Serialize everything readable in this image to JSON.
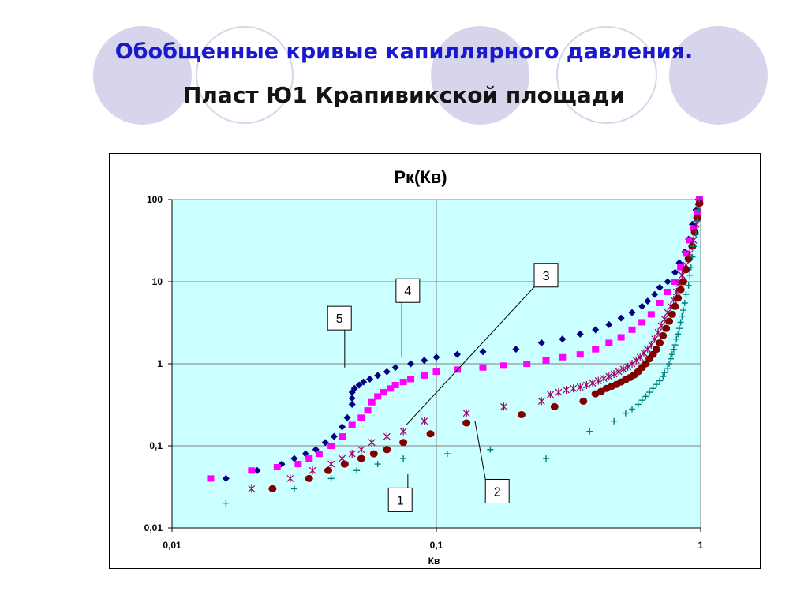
{
  "slide": {
    "title_line1": "Обобщенные кривые капиллярного давления.",
    "title_line2": "Пласт Ю1 Крапивикской площади"
  },
  "chart_data": {
    "type": "scatter",
    "title": "Рк(Кв)",
    "xlabel": "Кв",
    "ylabel": "",
    "x_scale": "log",
    "y_scale": "log",
    "xlim": [
      0.01,
      1
    ],
    "ylim": [
      0.01,
      100
    ],
    "x_ticks": [
      "0,01",
      "0,1",
      "1"
    ],
    "y_ticks": [
      "0,01",
      "0,1",
      "1",
      "10",
      "100"
    ],
    "grid": true,
    "plot_background": "#ccffff",
    "series": [
      {
        "marker": "diamond",
        "color": "#000080",
        "points": [
          [
            0.016,
            0.04
          ],
          [
            0.021,
            0.05
          ],
          [
            0.026,
            0.06
          ],
          [
            0.029,
            0.07
          ],
          [
            0.032,
            0.08
          ],
          [
            0.035,
            0.09
          ],
          [
            0.038,
            0.11
          ],
          [
            0.041,
            0.13
          ],
          [
            0.044,
            0.17
          ],
          [
            0.046,
            0.22
          ],
          [
            0.048,
            0.32
          ],
          [
            0.048,
            0.38
          ],
          [
            0.048,
            0.45
          ],
          [
            0.049,
            0.5
          ],
          [
            0.051,
            0.55
          ],
          [
            0.053,
            0.6
          ],
          [
            0.056,
            0.65
          ],
          [
            0.06,
            0.72
          ],
          [
            0.065,
            0.8
          ],
          [
            0.07,
            0.9
          ],
          [
            0.08,
            1.0
          ],
          [
            0.09,
            1.1
          ],
          [
            0.1,
            1.2
          ],
          [
            0.12,
            1.3
          ],
          [
            0.15,
            1.4
          ],
          [
            0.2,
            1.5
          ],
          [
            0.25,
            1.8
          ],
          [
            0.3,
            2.0
          ],
          [
            0.35,
            2.3
          ],
          [
            0.4,
            2.6
          ],
          [
            0.45,
            3.0
          ],
          [
            0.5,
            3.6
          ],
          [
            0.55,
            4.2
          ],
          [
            0.6,
            5.0
          ],
          [
            0.63,
            5.8
          ],
          [
            0.67,
            7.0
          ],
          [
            0.7,
            8.5
          ],
          [
            0.75,
            10
          ],
          [
            0.8,
            13
          ],
          [
            0.83,
            17
          ],
          [
            0.87,
            23
          ],
          [
            0.9,
            33
          ],
          [
            0.93,
            50
          ],
          [
            0.96,
            75
          ],
          [
            0.98,
            100
          ]
        ]
      },
      {
        "marker": "square",
        "color": "#ff00ff",
        "points": [
          [
            0.014,
            0.04
          ],
          [
            0.02,
            0.05
          ],
          [
            0.025,
            0.055
          ],
          [
            0.03,
            0.06
          ],
          [
            0.033,
            0.07
          ],
          [
            0.036,
            0.08
          ],
          [
            0.04,
            0.1
          ],
          [
            0.044,
            0.13
          ],
          [
            0.048,
            0.18
          ],
          [
            0.052,
            0.22
          ],
          [
            0.055,
            0.27
          ],
          [
            0.057,
            0.34
          ],
          [
            0.06,
            0.4
          ],
          [
            0.063,
            0.45
          ],
          [
            0.067,
            0.5
          ],
          [
            0.07,
            0.55
          ],
          [
            0.075,
            0.6
          ],
          [
            0.08,
            0.65
          ],
          [
            0.09,
            0.72
          ],
          [
            0.1,
            0.8
          ],
          [
            0.12,
            0.85
          ],
          [
            0.15,
            0.9
          ],
          [
            0.18,
            0.95
          ],
          [
            0.22,
            1.0
          ],
          [
            0.26,
            1.1
          ],
          [
            0.3,
            1.2
          ],
          [
            0.35,
            1.3
          ],
          [
            0.4,
            1.5
          ],
          [
            0.45,
            1.8
          ],
          [
            0.5,
            2.1
          ],
          [
            0.55,
            2.6
          ],
          [
            0.6,
            3.2
          ],
          [
            0.65,
            4.0
          ],
          [
            0.7,
            5.5
          ],
          [
            0.75,
            7.5
          ],
          [
            0.8,
            10
          ],
          [
            0.84,
            15
          ],
          [
            0.88,
            22
          ],
          [
            0.91,
            32
          ],
          [
            0.94,
            45
          ],
          [
            0.97,
            70
          ],
          [
            0.99,
            100
          ]
        ]
      },
      {
        "marker": "star",
        "color": "#990066",
        "points": [
          [
            0.02,
            0.03
          ],
          [
            0.028,
            0.04
          ],
          [
            0.034,
            0.05
          ],
          [
            0.04,
            0.06
          ],
          [
            0.044,
            0.07
          ],
          [
            0.048,
            0.08
          ],
          [
            0.052,
            0.09
          ],
          [
            0.057,
            0.11
          ],
          [
            0.065,
            0.13
          ],
          [
            0.075,
            0.15
          ],
          [
            0.09,
            0.2
          ],
          [
            0.13,
            0.25
          ],
          [
            0.18,
            0.3
          ],
          [
            0.25,
            0.35
          ],
          [
            0.27,
            0.42
          ],
          [
            0.29,
            0.45
          ],
          [
            0.31,
            0.48
          ],
          [
            0.33,
            0.5
          ],
          [
            0.35,
            0.52
          ],
          [
            0.37,
            0.55
          ],
          [
            0.39,
            0.58
          ],
          [
            0.41,
            0.62
          ],
          [
            0.43,
            0.66
          ],
          [
            0.45,
            0.7
          ],
          [
            0.47,
            0.75
          ],
          [
            0.49,
            0.8
          ],
          [
            0.51,
            0.86
          ],
          [
            0.53,
            0.92
          ],
          [
            0.55,
            1.0
          ],
          [
            0.57,
            1.1
          ],
          [
            0.59,
            1.2
          ],
          [
            0.61,
            1.35
          ],
          [
            0.63,
            1.5
          ],
          [
            0.65,
            1.7
          ],
          [
            0.67,
            2.0
          ],
          [
            0.69,
            2.4
          ],
          [
            0.71,
            2.9
          ],
          [
            0.73,
            3.5
          ],
          [
            0.75,
            4.2
          ],
          [
            0.77,
            5.0
          ],
          [
            0.79,
            6.0
          ],
          [
            0.81,
            7.5
          ],
          [
            0.83,
            9.5
          ],
          [
            0.85,
            12
          ],
          [
            0.88,
            16
          ],
          [
            0.91,
            22
          ],
          [
            0.94,
            32
          ],
          [
            0.96,
            50
          ],
          [
            0.98,
            80
          ]
        ]
      },
      {
        "marker": "circle",
        "color": "#800000",
        "points": [
          [
            0.024,
            0.03
          ],
          [
            0.033,
            0.04
          ],
          [
            0.039,
            0.05
          ],
          [
            0.045,
            0.06
          ],
          [
            0.052,
            0.07
          ],
          [
            0.058,
            0.08
          ],
          [
            0.065,
            0.09
          ],
          [
            0.075,
            0.11
          ],
          [
            0.095,
            0.14
          ],
          [
            0.13,
            0.19
          ],
          [
            0.21,
            0.24
          ],
          [
            0.28,
            0.3
          ],
          [
            0.36,
            0.35
          ],
          [
            0.4,
            0.43
          ],
          [
            0.42,
            0.46
          ],
          [
            0.44,
            0.5
          ],
          [
            0.46,
            0.53
          ],
          [
            0.48,
            0.56
          ],
          [
            0.5,
            0.6
          ],
          [
            0.52,
            0.64
          ],
          [
            0.54,
            0.68
          ],
          [
            0.56,
            0.73
          ],
          [
            0.58,
            0.8
          ],
          [
            0.6,
            0.9
          ],
          [
            0.62,
            1.0
          ],
          [
            0.64,
            1.15
          ],
          [
            0.66,
            1.3
          ],
          [
            0.68,
            1.5
          ],
          [
            0.7,
            1.8
          ],
          [
            0.72,
            2.2
          ],
          [
            0.74,
            2.7
          ],
          [
            0.76,
            3.3
          ],
          [
            0.78,
            4.0
          ],
          [
            0.8,
            5.0
          ],
          [
            0.82,
            6.3
          ],
          [
            0.84,
            8.0
          ],
          [
            0.86,
            10
          ],
          [
            0.88,
            14
          ],
          [
            0.9,
            19
          ],
          [
            0.93,
            27
          ],
          [
            0.95,
            40
          ],
          [
            0.97,
            60
          ],
          [
            0.99,
            90
          ]
        ]
      },
      {
        "marker": "plus",
        "color": "#008080",
        "points": [
          [
            0.016,
            0.02
          ],
          [
            0.029,
            0.03
          ],
          [
            0.04,
            0.04
          ],
          [
            0.05,
            0.05
          ],
          [
            0.06,
            0.06
          ],
          [
            0.075,
            0.07
          ],
          [
            0.11,
            0.08
          ],
          [
            0.16,
            0.09
          ],
          [
            0.26,
            0.07
          ],
          [
            0.38,
            0.15
          ],
          [
            0.47,
            0.2
          ],
          [
            0.52,
            0.25
          ],
          [
            0.55,
            0.28
          ],
          [
            0.58,
            0.32
          ],
          [
            0.6,
            0.36
          ],
          [
            0.62,
            0.4
          ],
          [
            0.64,
            0.45
          ],
          [
            0.66,
            0.5
          ],
          [
            0.68,
            0.56
          ],
          [
            0.7,
            0.62
          ],
          [
            0.72,
            0.7
          ],
          [
            0.73,
            0.78
          ],
          [
            0.75,
            0.88
          ],
          [
            0.76,
            1.0
          ],
          [
            0.77,
            1.15
          ],
          [
            0.78,
            1.3
          ],
          [
            0.79,
            1.5
          ],
          [
            0.8,
            1.7
          ],
          [
            0.81,
            2.0
          ],
          [
            0.82,
            2.3
          ],
          [
            0.83,
            2.7
          ],
          [
            0.84,
            3.2
          ],
          [
            0.85,
            3.8
          ],
          [
            0.86,
            4.5
          ],
          [
            0.87,
            5.5
          ],
          [
            0.88,
            7.0
          ],
          [
            0.9,
            9.0
          ],
          [
            0.91,
            12
          ],
          [
            0.92,
            15
          ],
          [
            0.93,
            20
          ],
          [
            0.94,
            27
          ],
          [
            0.96,
            38
          ],
          [
            0.97,
            55
          ],
          [
            0.98,
            75
          ],
          [
            0.99,
            100
          ]
        ]
      }
    ],
    "annotations": [
      {
        "label": "1",
        "box": [
          0.073,
          0.022
        ],
        "target": [
          0.078,
          0.045
        ]
      },
      {
        "label": "2",
        "box": [
          0.17,
          0.028
        ],
        "target": [
          0.14,
          0.2
        ]
      },
      {
        "label": "3",
        "box": [
          0.26,
          12
        ],
        "target": [
          0.077,
          0.18
        ]
      },
      {
        "label": "4",
        "box": [
          0.078,
          7.8
        ],
        "target": [
          0.074,
          1.2
        ]
      },
      {
        "label": "5",
        "box": [
          0.043,
          3.6
        ],
        "target": [
          0.045,
          0.9
        ]
      }
    ]
  }
}
